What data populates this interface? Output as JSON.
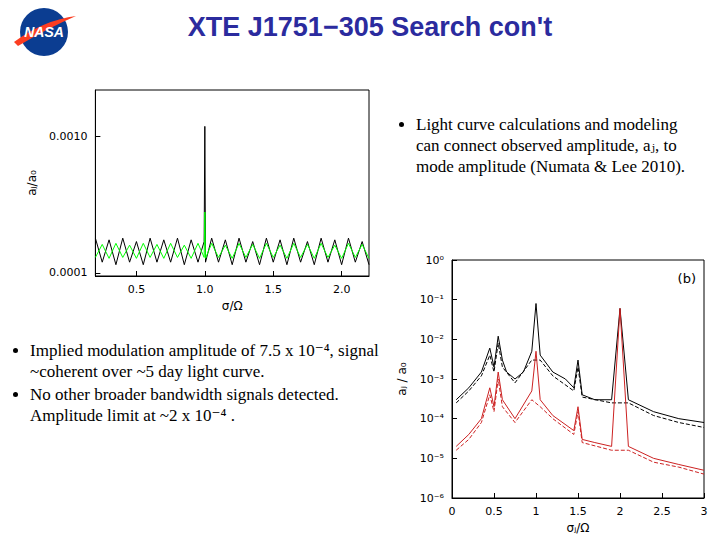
{
  "slide": {
    "logo": "NASA",
    "title": "XTE J1751−305 Search con't",
    "bullets_right": [
      "Light curve calculations and modeling can connect observed amplitude, aⱼ, to mode amplitude (Numata & Lee 2010)."
    ],
    "bullets_left": [
      "Implied modulation amplitude of 7.5 x 10⁻⁴, signal ~coherent over ~5 day light curve.",
      "No other broader bandwidth signals detected. Amplitude limit at ~2 x 10⁻⁴ ."
    ]
  },
  "chart_data": [
    {
      "type": "line",
      "x_label": "σ/Ω",
      "y_label": "aⱼ/a₀",
      "log": "y",
      "grid": false,
      "xlim": [
        0.2,
        2.2
      ],
      "xticks": [
        0.5,
        {
          "value": 1,
          "label": "1.0"
        },
        1.5,
        {
          "value": 2,
          "label": "2.0"
        }
      ],
      "ylim": [
        9.5e-05,
        0.0022
      ],
      "yticks": [
        0.0001,
        {
          "value": 0.001,
          "label": "0.0010"
        }
      ],
      "series": [
        {
          "color": "#000000",
          "line_style": "solid",
          "x": [
            0.2,
            0.25,
            0.3,
            0.35,
            0.4,
            0.45,
            0.5,
            0.55,
            0.6,
            0.65,
            0.7,
            0.75,
            0.8,
            0.85,
            0.9,
            0.95,
            0.995,
            1.0,
            1.005,
            1.05,
            1.1,
            1.15,
            1.2,
            1.25,
            1.3,
            1.35,
            1.4,
            1.45,
            1.5,
            1.55,
            1.6,
            1.65,
            1.7,
            1.75,
            1.8,
            1.85,
            1.9,
            1.95,
            2.0,
            2.05,
            2.1,
            2.15,
            2.2
          ],
          "values": [
            0.00018,
            0.00012,
            0.000175,
            0.000115,
            0.00018,
            0.00012,
            0.00017,
            0.000115,
            0.00018,
            0.00012,
            0.000175,
            0.00012,
            0.00018,
            0.000115,
            0.000175,
            0.00012,
            0.00017,
            0.00119,
            0.00012,
            0.00018,
            0.00012,
            0.000175,
            0.000115,
            0.00018,
            0.00012,
            0.00017,
            0.000115,
            0.00018,
            0.00012,
            0.000175,
            0.000115,
            0.00018,
            0.00012,
            0.00017,
            0.000115,
            0.00018,
            0.00012,
            0.000175,
            0.000115,
            0.00018,
            0.00012,
            0.00017,
            0.000115
          ]
        },
        {
          "color": "#00ff00",
          "line_style": "solid",
          "x": [
            0.2,
            0.25,
            0.3,
            0.35,
            0.4,
            0.45,
            0.5,
            0.55,
            0.6,
            0.65,
            0.7,
            0.75,
            0.8,
            0.85,
            0.9,
            0.95,
            0.995,
            1.0,
            1.005,
            1.05,
            1.1,
            1.15,
            1.2,
            1.25,
            1.3,
            1.35,
            1.4,
            1.45,
            1.5,
            1.55,
            1.6,
            1.65,
            1.7,
            1.75,
            1.8,
            1.85,
            1.9,
            1.95,
            2.0,
            2.05,
            2.1,
            2.15,
            2.2
          ],
          "values": [
            0.00013,
            0.000162,
            0.000128,
            0.000165,
            0.00013,
            0.00016,
            0.000128,
            0.000165,
            0.00013,
            0.000162,
            0.000128,
            0.000165,
            0.00013,
            0.00016,
            0.000128,
            0.000165,
            0.00013,
            0.00028,
            0.000128,
            0.000165,
            0.00013,
            0.00016,
            0.000128,
            0.000165,
            0.00013,
            0.000162,
            0.000128,
            0.000165,
            0.00013,
            0.00016,
            0.000128,
            0.000165,
            0.00013,
            0.000162,
            0.000128,
            0.000165,
            0.00013,
            0.00016,
            0.000128,
            0.000165,
            0.00013,
            0.000162,
            0.000128
          ]
        }
      ]
    },
    {
      "type": "line",
      "x_label": "σⱼ/Ω",
      "y_label": "aⱼ / a₀",
      "log": "y",
      "grid": false,
      "annotations": [
        {
          "text": "(b)"
        }
      ],
      "xlim": [
        0,
        3
      ],
      "xticks": [
        0,
        0.5,
        1,
        1.5,
        2,
        2.5,
        3
      ],
      "ylim": [
        1e-06,
        1
      ],
      "yticks": [
        {
          "value": 1,
          "label": "10⁰"
        },
        {
          "value": 0.1,
          "label": "10⁻¹"
        },
        {
          "value": 0.01,
          "label": "10⁻²"
        },
        {
          "value": 0.001,
          "label": "10⁻³"
        },
        {
          "value": 0.0001,
          "label": "10⁻⁴"
        },
        {
          "value": 1e-05,
          "label": "10⁻⁵"
        },
        {
          "value": 1e-06,
          "label": "10⁻⁶"
        }
      ],
      "series": [
        {
          "color": "#000000",
          "line_style": "solid",
          "x": [
            0.05,
            0.2,
            0.35,
            0.45,
            0.5,
            0.55,
            0.6,
            0.65,
            0.75,
            0.85,
            0.95,
            1.0,
            1.05,
            1.2,
            1.35,
            1.45,
            1.5,
            1.55,
            1.7,
            1.9,
            2.0,
            2.1,
            2.4,
            2.7,
            3.0
          ],
          "values": [
            0.0003,
            0.0006,
            0.0015,
            0.006,
            0.002,
            0.012,
            0.003,
            0.0015,
            0.001,
            0.0015,
            0.005,
            0.08,
            0.004,
            0.0015,
            0.001,
            0.0006,
            0.003,
            0.0004,
            0.0003,
            0.0003,
            0.06,
            0.0003,
            0.00015,
            0.0001,
            8e-05
          ]
        },
        {
          "color": "#000000",
          "line_style": "dashed",
          "x": [
            0.05,
            0.2,
            0.35,
            0.45,
            0.5,
            0.55,
            0.6,
            0.75,
            0.95,
            1.05,
            1.2,
            1.45,
            1.5,
            1.55,
            1.9,
            2.1,
            2.4,
            2.7,
            3.0
          ],
          "values": [
            0.00025,
            0.0005,
            0.0012,
            0.004,
            0.0015,
            0.008,
            0.002,
            0.0008,
            0.003,
            0.003,
            0.0012,
            0.0005,
            0.002,
            0.00035,
            0.00025,
            0.00025,
            0.00012,
            8e-05,
            6e-05
          ]
        },
        {
          "color": "#cc2222",
          "line_style": "solid",
          "x": [
            0.05,
            0.2,
            0.35,
            0.45,
            0.5,
            0.55,
            0.6,
            0.75,
            0.95,
            1.0,
            1.05,
            1.2,
            1.45,
            1.5,
            1.55,
            1.7,
            1.9,
            2.0,
            2.1,
            2.4,
            2.7,
            3.0
          ],
          "values": [
            2e-05,
            4e-05,
            0.0001,
            0.0006,
            0.0002,
            0.0015,
            0.0003,
            0.0001,
            0.0005,
            0.005,
            0.0003,
            0.00012,
            5e-05,
            0.0002,
            3e-05,
            2.5e-05,
            2e-05,
            0.06,
            2e-05,
            1e-05,
            7e-06,
            5e-06
          ]
        },
        {
          "color": "#cc2222",
          "line_style": "dashed",
          "x": [
            0.05,
            0.2,
            0.35,
            0.45,
            0.5,
            0.55,
            0.6,
            0.75,
            0.95,
            1.05,
            1.2,
            1.45,
            1.5,
            1.55,
            1.9,
            2.1,
            2.4,
            2.7,
            3.0
          ],
          "values": [
            1.6e-05,
            3e-05,
            8e-05,
            0.0004,
            0.00015,
            0.001,
            0.0002,
            8e-05,
            0.0003,
            0.0002,
            0.0001,
            4e-05,
            0.00015,
            2.5e-05,
            1.6e-05,
            1.6e-05,
            8e-06,
            6e-06,
            4e-06
          ]
        }
      ]
    }
  ]
}
